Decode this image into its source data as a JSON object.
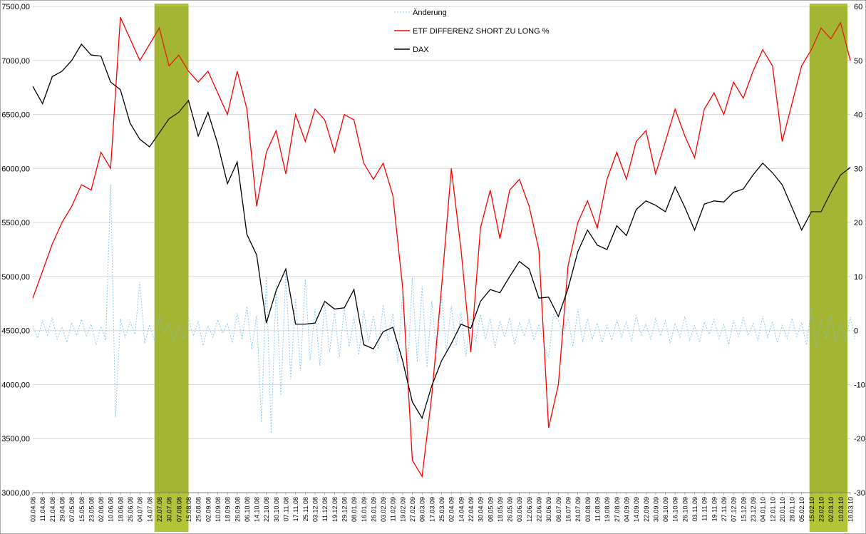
{
  "legend": [
    {
      "label": "Änderung",
      "color": "#8ecdf0",
      "style": "dashed"
    },
    {
      "label": "ETF DIFFERENZ SHORT ZU LONG %",
      "color": "#ff0000",
      "style": "solid"
    },
    {
      "label": "DAX",
      "color": "#000000",
      "style": "solid"
    }
  ],
  "colors": {
    "grid": "#d6d6d6",
    "axis": "#808080",
    "band": "#b3c437",
    "band_tint": "#77862a",
    "background": "#ffffff"
  },
  "axes": {
    "left_ticks": [
      "7500,00",
      "7000,00",
      "6500,00",
      "6000,00",
      "5500,00",
      "5000,00",
      "4500,00",
      "4000,00",
      "3500,00",
      "3000,00"
    ],
    "right_ticks": [
      "60",
      "50",
      "40",
      "30",
      "20",
      "10",
      "0",
      "-10",
      "-20",
      "-30"
    ]
  },
  "chart_data": {
    "type": "line",
    "title": "",
    "legend_position": "top-center",
    "grid": "horizontal",
    "ylim_left": [
      3000,
      7500
    ],
    "ylim_right": [
      -30,
      60
    ],
    "x_labels": [
      "03.04.08",
      "11.04.08",
      "21.04.08",
      "29.04.08",
      "07.05.08",
      "15.05.08",
      "23.05.08",
      "02.06.08",
      "10.06.08",
      "18.06.08",
      "26.06.08",
      "04.07.08",
      "14.07.08",
      "22.07.08",
      "30.07.08",
      "07.08.08",
      "15.08.08",
      "25.08.08",
      "02.09.08",
      "10.09.08",
      "18.09.08",
      "26.09.08",
      "06.10.08",
      "14.10.08",
      "22.10.08",
      "30.10.08",
      "07.11.08",
      "17.11.08",
      "25.11.08",
      "03.12.08",
      "11.12.08",
      "19.12.08",
      "29.12.08",
      "08.01.09",
      "16.01.09",
      "26.01.09",
      "03.02.09",
      "11.02.09",
      "19.02.09",
      "27.02.09",
      "09.03.09",
      "17.03.09",
      "25.03.09",
      "02.04.09",
      "14.04.09",
      "22.04.09",
      "30.04.09",
      "08.05.09",
      "18.05.09",
      "26.05.09",
      "03.06.09",
      "12.06.09",
      "22.06.09",
      "30.06.09",
      "08.07.09",
      "16.07.09",
      "24.07.09",
      "03.08.09",
      "11.08.09",
      "19.08.09",
      "27.08.09",
      "04.09.09",
      "14.09.09",
      "22.09.09",
      "30.09.09",
      "08.10.09",
      "16.10.09",
      "26.10.09",
      "03.11.09",
      "11.11.09",
      "19.11.09",
      "27.11.09",
      "07.12.09",
      "15.12.09",
      "23.12.09",
      "04.01.10",
      "12.01.10",
      "20.01.10",
      "28.01.10",
      "05.02.10",
      "15.02.10",
      "23.02.10",
      "02.03.10",
      "10.03.10",
      "18.03.10"
    ],
    "highlight_bands": [
      {
        "from_index": 12.5,
        "to_index": 16.0
      },
      {
        "from_index": 79.8,
        "to_index": 83.7
      }
    ],
    "series": [
      {
        "name": "Änderung",
        "axis": "right",
        "color": "#8ecdf0",
        "dash": true,
        "x_step": 0.5,
        "values": [
          0.9,
          -1.4,
          1.8,
          -0.8,
          2.4,
          -1.6,
          0.7,
          -2.2,
          1.5,
          -0.9,
          2.1,
          -1.1,
          1.2,
          -2.6,
          0.8,
          -1.8,
          27.0,
          -16.0,
          2.2,
          -1.3,
          1.6,
          -0.7,
          9.0,
          -2.4,
          1.1,
          -1.9,
          2.6,
          -0.6,
          1.3,
          -2.1,
          0.8,
          -1.5,
          2.3,
          -1.0,
          1.7,
          -2.8,
          0.9,
          -1.2,
          2.0,
          -0.5,
          1.4,
          -2.3,
          3.2,
          -1.7,
          4.5,
          -3.5,
          2.8,
          -17.0,
          10.0,
          -19.0,
          8.5,
          -12.0,
          11.0,
          -9.0,
          6.0,
          -7.5,
          9.5,
          -5.5,
          4.0,
          -6.5,
          5.0,
          -4.0,
          3.5,
          -5.0,
          4.2,
          -3.0,
          2.5,
          -4.5,
          3.8,
          -2.2,
          2.8,
          -3.5,
          4.8,
          -2.0,
          3.2,
          -6.0,
          7.0,
          -8.0,
          9.8,
          -5.8,
          8.2,
          -6.8,
          5.5,
          -4.2,
          6.5,
          -3.8,
          4.6,
          -2.8,
          3.4,
          -4.8,
          2.6,
          -2.0,
          3.0,
          -1.6,
          2.2,
          -3.2,
          1.8,
          -1.2,
          2.4,
          -2.6,
          1.5,
          -1.0,
          2.0,
          -1.8,
          1.2,
          -2.4,
          -5.0,
          3.0,
          1.9,
          -0.9,
          2.5,
          -3.0,
          4.0,
          -2.2,
          2.2,
          -1.6,
          1.4,
          -2.2,
          1.0,
          -1.8,
          2.0,
          -1.2,
          1.6,
          -2.0,
          2.8,
          -0.8,
          1.2,
          -1.6,
          2.2,
          -1.0,
          1.8,
          -2.4,
          1.4,
          -1.2,
          2.6,
          -1.8,
          0.9,
          -2.2,
          1.6,
          -0.7,
          2.1,
          -1.5,
          1.1,
          -2.6,
          1.9,
          -1.1,
          2.4,
          -0.9,
          1.3,
          -1.9,
          2.7,
          -1.3,
          1.7,
          -2.3,
          1.0,
          -1.5,
          2.3,
          -1.1,
          1.5,
          -2.7,
          4.2,
          -3.2,
          2.0,
          -1.4,
          2.9,
          -2.1,
          1.2,
          -1.8,
          2.5,
          -1.6
        ]
      },
      {
        "name": "ETF DIFFERENZ SHORT ZU LONG %",
        "axis": "right",
        "color": "#ff0000",
        "dash": false,
        "x_step": 1,
        "values": [
          6,
          11,
          16,
          20,
          23,
          27,
          26,
          33,
          30,
          58,
          54,
          50,
          53,
          56,
          49,
          51,
          48,
          46,
          48,
          44,
          40,
          48,
          41,
          23,
          33,
          37,
          29,
          40,
          35,
          41,
          39,
          33,
          40,
          39,
          31,
          28,
          31,
          25,
          8,
          -24,
          -27,
          -12,
          8,
          30,
          15,
          -4,
          19,
          26,
          17,
          26,
          28,
          23,
          15,
          -18,
          -10,
          12,
          20,
          24,
          19,
          28,
          33,
          28,
          35,
          37,
          29,
          35,
          41,
          36,
          32,
          41,
          44,
          40,
          46,
          43,
          48,
          52,
          49,
          35,
          42,
          49,
          52,
          56,
          54,
          57,
          50
        ]
      },
      {
        "name": "DAX",
        "axis": "left",
        "color": "#000000",
        "dash": false,
        "x_step": 1,
        "values": [
          6760,
          6600,
          6850,
          6900,
          7000,
          7150,
          7050,
          7040,
          6800,
          6730,
          6420,
          6270,
          6200,
          6330,
          6460,
          6520,
          6630,
          6300,
          6520,
          6230,
          5860,
          6060,
          5390,
          5200,
          4570,
          4870,
          5070,
          4560,
          4560,
          4570,
          4770,
          4700,
          4710,
          4880,
          4370,
          4330,
          4490,
          4530,
          4220,
          3840,
          3690,
          3990,
          4220,
          4380,
          4560,
          4520,
          4770,
          4880,
          4850,
          5000,
          5140,
          5070,
          4800,
          4810,
          4630,
          4890,
          5230,
          5430,
          5290,
          5250,
          5470,
          5380,
          5620,
          5700,
          5660,
          5600,
          5830,
          5640,
          5430,
          5670,
          5700,
          5690,
          5780,
          5810,
          5940,
          6050,
          5960,
          5850,
          5640,
          5430,
          5600,
          5600,
          5780,
          5940,
          6010
        ]
      }
    ]
  }
}
